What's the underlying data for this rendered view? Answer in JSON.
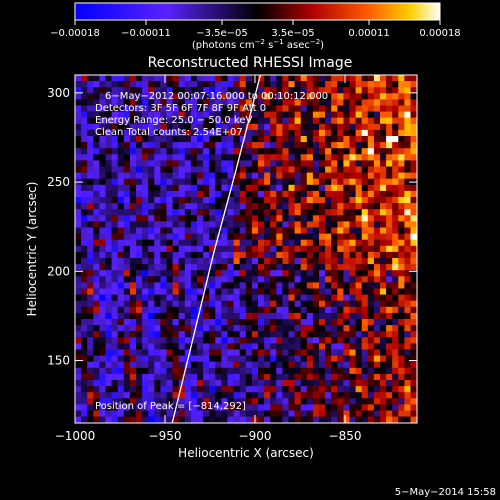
{
  "chart_data": {
    "type": "heatmap",
    "title": "Reconstructed RHESSI Image",
    "xlabel": "Heliocentric X (arcsec)",
    "ylabel": "Heliocentric Y (arcsec)",
    "xlim": [
      -1000,
      -810
    ],
    "ylim": [
      115,
      310
    ],
    "xticks": [
      -1000,
      -950,
      -900,
      -850
    ],
    "yticks": [
      150,
      200,
      250,
      300
    ],
    "xtick_labels": [
      "−1000",
      "−950",
      "−900",
      "−850"
    ],
    "ytick_labels": [
      "150",
      "200",
      "250",
      "300"
    ],
    "colorbar": {
      "range": [
        -0.00018,
        0.00018
      ],
      "ticks": [
        -0.00018,
        -0.00011,
        -3.5e-05,
        3.5e-05,
        0.00011,
        0.00018
      ],
      "tick_labels": [
        "−0.00018",
        "−0.00011",
        "−3.5e−05",
        "3.5e−05",
        "0.00011",
        "0.00018"
      ],
      "unit_base": "(photons cm",
      "unit_sup1": "−2",
      "unit_mid": " s",
      "unit_sup2": "−1",
      "unit_mid2": " asec",
      "unit_sup3": "−2",
      "unit_end": ")"
    },
    "annotations": [
      "6−May−2012 00:07:16.000 to 00:10:12.000",
      "Detectors: 3F 5F 6F 7F 8F 9F  Att 0",
      "Energy Range: 25.0 − 50.0 keV",
      "Clean     Total counts: 2.54E+07"
    ],
    "peak_label": "Position of Peak = [−814,292]",
    "limb": [
      [
        -946,
        115
      ],
      [
        -935,
        160
      ],
      [
        -923,
        210
      ],
      [
        -911,
        255
      ],
      [
        -897,
        310
      ]
    ]
  },
  "footer": {
    "timestamp": "5−May−2014 15:58"
  }
}
